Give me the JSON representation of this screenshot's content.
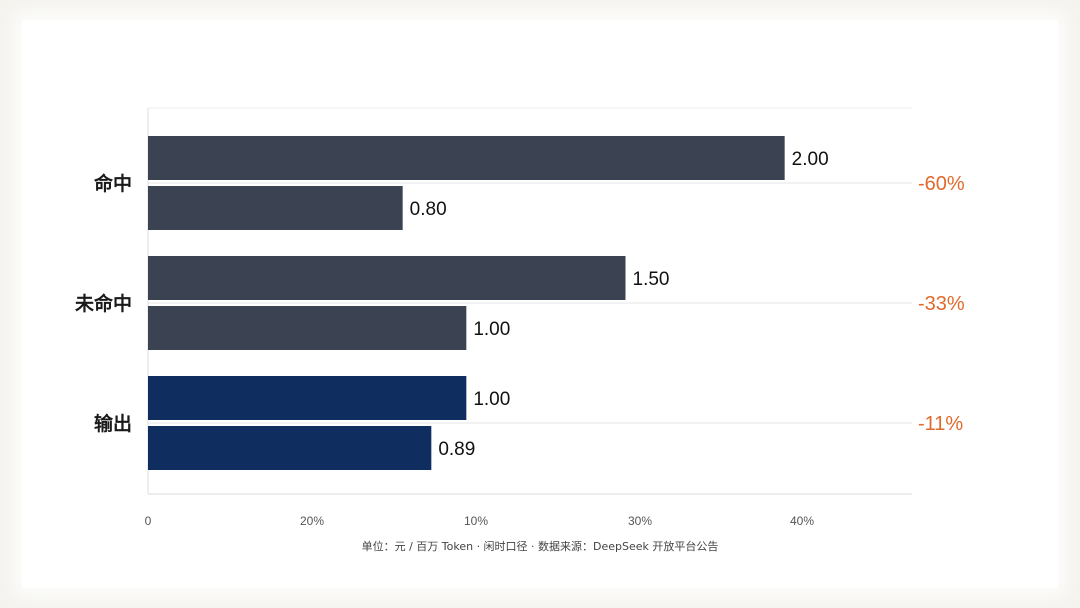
{
  "chart_data": {
    "type": "bar",
    "orientation": "horizontal",
    "grid": true,
    "categories": [
      "命中",
      "未命中",
      "输出"
    ],
    "values": [
      [
        2.0,
        0.8
      ],
      [
        1.5,
        1.0
      ],
      [
        1.0,
        0.89
      ]
    ],
    "bar_labels": [
      [
        "2.00",
        "0.80"
      ],
      [
        "1.50",
        "1.00"
      ],
      [
        "1.00",
        "0.89"
      ]
    ],
    "bar_colors": [
      "#3b4352",
      "#3b4352",
      "#0f2d5e"
    ],
    "changes": [
      "-60%",
      "-33%",
      "-11%"
    ],
    "change_color": "#e06a2c",
    "x_ticks": [
      "0",
      "20%",
      "10%",
      "30%",
      "40%"
    ],
    "xlim": [
      0,
      2.4
    ],
    "footnote": "单位：元 / 百万 Token · 闲时口径 · 数据来源：DeepSeek 开放平台公告"
  }
}
